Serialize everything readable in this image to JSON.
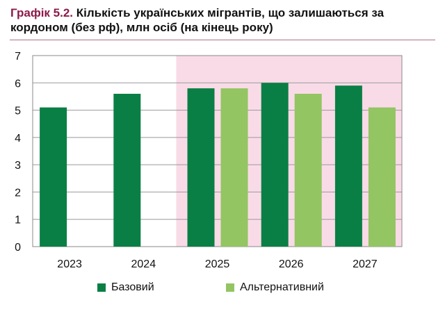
{
  "chart_data": {
    "type": "bar",
    "title_prefix": "Графік 5.2.",
    "title": "Кількість українських мігрантів, що залишаються за кордоном (без рф), млн осіб (на кінець року)",
    "categories": [
      "2023",
      "2024",
      "2025",
      "2026",
      "2027"
    ],
    "series": [
      {
        "name": "Базовий",
        "values": [
          5.1,
          5.6,
          5.8,
          6.0,
          5.9
        ],
        "color": "#0a7f45"
      },
      {
        "name": "Альтернативний",
        "values": [
          null,
          null,
          5.8,
          5.6,
          5.1
        ],
        "color": "#93c562"
      }
    ],
    "ylim": [
      0,
      7
    ],
    "yticks": [
      "0",
      "1",
      "2",
      "3",
      "4",
      "5",
      "6",
      "7"
    ],
    "grid": true,
    "forecast_shading": {
      "from": "2025",
      "to": "2027",
      "color": "#f9dbe7"
    },
    "legend": "bottom"
  }
}
